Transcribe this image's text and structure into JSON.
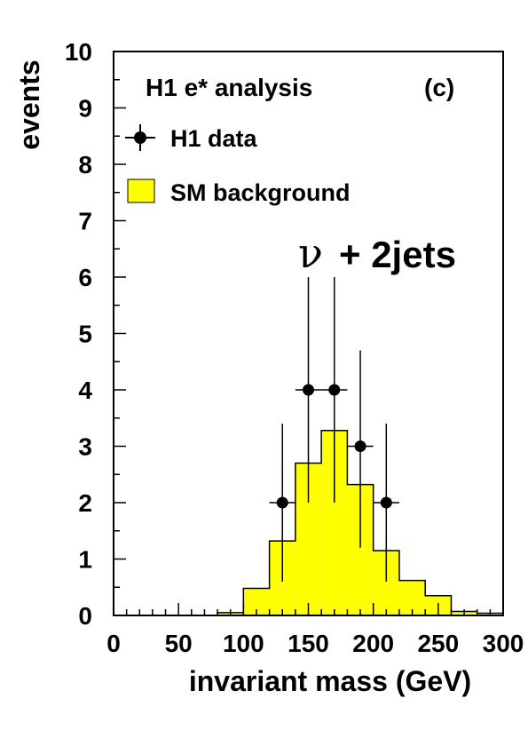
{
  "chart_data": {
    "type": "bar",
    "title": "H1 e* analysis",
    "panel_label": "(c)",
    "channel_label": {
      "symbol": "ν",
      "text": "+ 2jets"
    },
    "xlabel": "invariant mass (GeV)",
    "ylabel": "events",
    "xlim": [
      0,
      300
    ],
    "ylim": [
      0,
      10
    ],
    "x_ticks": [
      0,
      50,
      100,
      150,
      200,
      250,
      300
    ],
    "y_ticks": [
      0,
      1,
      2,
      3,
      4,
      5,
      6,
      7,
      8,
      9,
      10
    ],
    "x_minor_step": 10,
    "y_minor_step": 0.5,
    "grid": false,
    "legend": {
      "placement": "top-left",
      "entries": [
        {
          "label": "H1 data",
          "kind": "marker"
        },
        {
          "label": "SM background",
          "kind": "fill"
        }
      ]
    },
    "series": [
      {
        "name": "SM background",
        "kind": "step-histogram",
        "color": "#ffff00",
        "bin_edges": [
          0,
          20,
          40,
          60,
          80,
          100,
          120,
          140,
          160,
          180,
          200,
          220,
          240,
          260,
          280,
          300
        ],
        "values": [
          0,
          0,
          0,
          0,
          0.05,
          0.48,
          1.32,
          2.7,
          3.28,
          2.32,
          1.15,
          0.62,
          0.35,
          0.07,
          0.04
        ]
      },
      {
        "name": "H1 data",
        "kind": "points",
        "color": "#000000",
        "x": [
          130,
          150,
          170,
          190,
          210
        ],
        "y": [
          2,
          4,
          4,
          3,
          2
        ],
        "x_err": [
          10,
          10,
          10,
          10,
          10
        ],
        "y_low": [
          0.6,
          2.0,
          2.0,
          1.2,
          0.6
        ],
        "y_high": [
          3.4,
          6.0,
          6.0,
          4.7,
          3.4
        ]
      }
    ]
  }
}
